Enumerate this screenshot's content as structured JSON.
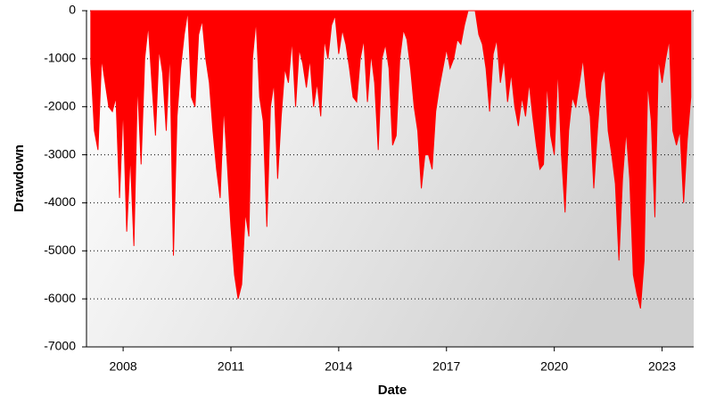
{
  "chart_data": {
    "type": "area",
    "xlabel": "Date",
    "ylabel": "Drawdown",
    "color": "#ff0000",
    "xlim": [
      2006.98,
      2023.88
    ],
    "xticks": [
      2008,
      2011,
      2014,
      2017,
      2020,
      2023
    ],
    "ylim": [
      -7000,
      0
    ],
    "yticks": [
      0,
      -1000,
      -2000,
      -3000,
      -4000,
      -5000,
      -6000,
      -7000
    ],
    "grid": true,
    "x": [
      2007.1,
      2007.2,
      2007.3,
      2007.4,
      2007.5,
      2007.6,
      2007.7,
      2007.8,
      2007.9,
      2008,
      2008.1,
      2008.2,
      2008.3,
      2008.4,
      2008.5,
      2008.6,
      2008.7,
      2008.8,
      2008.9,
      2009,
      2009.1,
      2009.2,
      2009.3,
      2009.4,
      2009.5,
      2009.6,
      2009.7,
      2009.8,
      2009.9,
      2010,
      2010.1,
      2010.2,
      2010.3,
      2010.4,
      2010.5,
      2010.6,
      2010.7,
      2010.8,
      2010.9,
      2011,
      2011.1,
      2011.2,
      2011.3,
      2011.4,
      2011.5,
      2011.6,
      2011.7,
      2011.8,
      2011.9,
      2012,
      2012.1,
      2012.2,
      2012.3,
      2012.4,
      2012.5,
      2012.6,
      2012.7,
      2012.8,
      2012.9,
      2013,
      2013.1,
      2013.2,
      2013.3,
      2013.4,
      2013.5,
      2013.6,
      2013.7,
      2013.8,
      2013.9,
      2014,
      2014.1,
      2014.2,
      2014.3,
      2014.4,
      2014.5,
      2014.6,
      2014.7,
      2014.8,
      2014.9,
      2015,
      2015.1,
      2015.2,
      2015.3,
      2015.4,
      2015.5,
      2015.6,
      2015.7,
      2015.8,
      2015.9,
      2016,
      2016.1,
      2016.2,
      2016.3,
      2016.4,
      2016.5,
      2016.6,
      2016.7,
      2016.8,
      2016.9,
      2017,
      2017.1,
      2017.2,
      2017.3,
      2017.4,
      2017.5,
      2017.6,
      2017.7,
      2017.8,
      2017.9,
      2018,
      2018.1,
      2018.2,
      2018.3,
      2018.4,
      2018.5,
      2018.6,
      2018.7,
      2018.8,
      2018.9,
      2019,
      2019.1,
      2019.2,
      2019.3,
      2019.4,
      2019.5,
      2019.6,
      2019.7,
      2019.8,
      2019.9,
      2020,
      2020.1,
      2020.2,
      2020.3,
      2020.4,
      2020.5,
      2020.6,
      2020.7,
      2020.8,
      2020.9,
      2021,
      2021.1,
      2021.2,
      2021.3,
      2021.4,
      2021.5,
      2021.6,
      2021.7,
      2021.8,
      2021.9,
      2022,
      2022.1,
      2022.2,
      2022.3,
      2022.4,
      2022.5,
      2022.6,
      2022.7,
      2022.8,
      2022.9,
      2023,
      2023.1,
      2023.2,
      2023.3,
      2023.4,
      2023.5,
      2023.6,
      2023.7,
      2023.8
    ],
    "values": [
      -1100,
      -2500,
      -2900,
      -1000,
      -1500,
      -2000,
      -2100,
      -1800,
      -3900,
      -2000,
      -4600,
      -3000,
      -4900,
      -1500,
      -3200,
      -1000,
      -300,
      -1500,
      -2600,
      -800,
      -1300,
      -2500,
      -800,
      -5100,
      -2200,
      -1200,
      -500,
      0,
      -1800,
      -2000,
      -500,
      -200,
      -1000,
      -1500,
      -2500,
      -3300,
      -3900,
      -2000,
      -3200,
      -4500,
      -5500,
      -6000,
      -5700,
      -4200,
      -4700,
      -1000,
      -200,
      -1800,
      -2300,
      -4500,
      -2000,
      -1500,
      -3500,
      -2200,
      -1200,
      -1500,
      -600,
      -2000,
      -800,
      -1100,
      -1600,
      -1000,
      -2000,
      -1500,
      -2200,
      -600,
      -1000,
      -300,
      -100,
      -900,
      -400,
      -700,
      -1200,
      -1800,
      -1900,
      -1000,
      -600,
      -1900,
      -900,
      -1500,
      -2900,
      -1000,
      -700,
      -1200,
      -2800,
      -2600,
      -1000,
      -400,
      -600,
      -1200,
      -2000,
      -2500,
      -3700,
      -3000,
      -3000,
      -3300,
      -2100,
      -1600,
      -1200,
      -800,
      -1200,
      -1000,
      -600,
      -700,
      -300,
      0,
      0,
      0,
      -500,
      -700,
      -1200,
      -2100,
      -900,
      -600,
      -1500,
      -1000,
      -1900,
      -1300,
      -2000,
      -2400,
      -1800,
      -2200,
      -1500,
      -2200,
      -2800,
      -3300,
      -3200,
      -1500,
      -2600,
      -3000,
      -1200,
      -3000,
      -4200,
      -2500,
      -1800,
      -2000,
      -1500,
      -1000,
      -1800,
      -2200,
      -3700,
      -2500,
      -1500,
      -1200,
      -2500,
      -3000,
      -3600,
      -5200,
      -3500,
      -2500,
      -3500,
      -5500,
      -5900,
      -6200,
      -5200,
      -1500,
      -2300,
      -4300,
      -1000,
      -1500,
      -1000,
      -600,
      -2500,
      -2800,
      -2500,
      -4000,
      -2700,
      -1800
    ]
  }
}
